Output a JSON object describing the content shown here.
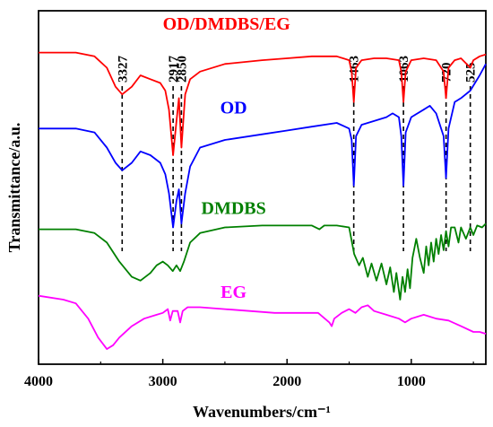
{
  "chart_data": {
    "type": "line",
    "xlabel": "Wavenumbers/cm⁻¹",
    "ylabel": "Transmittance/a.u.",
    "xlim": [
      4000,
      400
    ],
    "x_reversed": true,
    "x_ticks": [
      4000,
      3000,
      2000,
      1000
    ],
    "y_ticks": false,
    "grid": false,
    "legend": "none (series labeled inline above each curve)",
    "peak_markers": [
      3327,
      2917,
      2850,
      1463,
      1063,
      720,
      525
    ],
    "series": [
      {
        "name": "OD/DMDBS/EG",
        "color": "#ff0000",
        "points": [
          [
            4000,
            6.5
          ],
          [
            3700,
            6.5
          ],
          [
            3550,
            6.4
          ],
          [
            3450,
            6.1
          ],
          [
            3380,
            5.6
          ],
          [
            3327,
            5.4
          ],
          [
            3250,
            5.6
          ],
          [
            3180,
            5.9
          ],
          [
            3100,
            5.8
          ],
          [
            3020,
            5.7
          ],
          [
            2980,
            5.5
          ],
          [
            2950,
            5.0
          ],
          [
            2917,
            3.8
          ],
          [
            2890,
            4.7
          ],
          [
            2870,
            5.3
          ],
          [
            2850,
            4.0
          ],
          [
            2820,
            5.4
          ],
          [
            2780,
            5.8
          ],
          [
            2700,
            6.0
          ],
          [
            2500,
            6.2
          ],
          [
            2200,
            6.3
          ],
          [
            2000,
            6.35
          ],
          [
            1800,
            6.4
          ],
          [
            1600,
            6.4
          ],
          [
            1500,
            6.3
          ],
          [
            1480,
            6.0
          ],
          [
            1463,
            5.2
          ],
          [
            1445,
            6.1
          ],
          [
            1400,
            6.3
          ],
          [
            1300,
            6.35
          ],
          [
            1200,
            6.35
          ],
          [
            1100,
            6.3
          ],
          [
            1080,
            6.0
          ],
          [
            1063,
            5.2
          ],
          [
            1045,
            6.0
          ],
          [
            1000,
            6.3
          ],
          [
            900,
            6.35
          ],
          [
            800,
            6.3
          ],
          [
            740,
            6.0
          ],
          [
            720,
            5.3
          ],
          [
            700,
            6.1
          ],
          [
            650,
            6.3
          ],
          [
            600,
            6.35
          ],
          [
            525,
            6.1
          ],
          [
            500,
            6.3
          ],
          [
            450,
            6.4
          ],
          [
            400,
            6.45
          ]
        ]
      },
      {
        "name": "OD",
        "color": "#0000ff",
        "points": [
          [
            4000,
            4.5
          ],
          [
            3700,
            4.5
          ],
          [
            3550,
            4.4
          ],
          [
            3450,
            4.0
          ],
          [
            3380,
            3.6
          ],
          [
            3327,
            3.4
          ],
          [
            3250,
            3.6
          ],
          [
            3180,
            3.9
          ],
          [
            3100,
            3.8
          ],
          [
            3020,
            3.6
          ],
          [
            2980,
            3.3
          ],
          [
            2950,
            2.8
          ],
          [
            2917,
            1.9
          ],
          [
            2890,
            2.6
          ],
          [
            2870,
            2.9
          ],
          [
            2850,
            2.0
          ],
          [
            2820,
            2.8
          ],
          [
            2780,
            3.5
          ],
          [
            2700,
            4.0
          ],
          [
            2500,
            4.2
          ],
          [
            2200,
            4.35
          ],
          [
            2000,
            4.45
          ],
          [
            1800,
            4.55
          ],
          [
            1600,
            4.65
          ],
          [
            1500,
            4.5
          ],
          [
            1480,
            4.2
          ],
          [
            1463,
            3.0
          ],
          [
            1445,
            4.3
          ],
          [
            1400,
            4.6
          ],
          [
            1300,
            4.7
          ],
          [
            1200,
            4.8
          ],
          [
            1150,
            4.9
          ],
          [
            1100,
            4.8
          ],
          [
            1080,
            4.3
          ],
          [
            1063,
            3.0
          ],
          [
            1045,
            4.4
          ],
          [
            1000,
            4.8
          ],
          [
            900,
            5.0
          ],
          [
            850,
            5.1
          ],
          [
            800,
            4.9
          ],
          [
            740,
            4.3
          ],
          [
            720,
            3.2
          ],
          [
            700,
            4.5
          ],
          [
            650,
            5.2
          ],
          [
            600,
            5.3
          ],
          [
            525,
            5.5
          ],
          [
            450,
            5.9
          ],
          [
            400,
            6.2
          ]
        ]
      },
      {
        "name": "DMDBS",
        "color": "#008000",
        "points": [
          [
            4000,
            1.85
          ],
          [
            3700,
            1.85
          ],
          [
            3550,
            1.75
          ],
          [
            3450,
            1.5
          ],
          [
            3350,
            1.0
          ],
          [
            3250,
            0.6
          ],
          [
            3180,
            0.5
          ],
          [
            3100,
            0.7
          ],
          [
            3050,
            0.9
          ],
          [
            3000,
            1.0
          ],
          [
            2960,
            0.9
          ],
          [
            2920,
            0.75
          ],
          [
            2890,
            0.9
          ],
          [
            2860,
            0.75
          ],
          [
            2830,
            1.0
          ],
          [
            2780,
            1.5
          ],
          [
            2700,
            1.75
          ],
          [
            2500,
            1.9
          ],
          [
            2200,
            1.95
          ],
          [
            2000,
            1.95
          ],
          [
            1800,
            1.95
          ],
          [
            1740,
            1.85
          ],
          [
            1700,
            1.95
          ],
          [
            1600,
            1.95
          ],
          [
            1500,
            1.9
          ],
          [
            1460,
            1.2
          ],
          [
            1420,
            0.9
          ],
          [
            1390,
            1.1
          ],
          [
            1350,
            0.6
          ],
          [
            1320,
            0.95
          ],
          [
            1280,
            0.5
          ],
          [
            1240,
            0.95
          ],
          [
            1200,
            0.4
          ],
          [
            1170,
            0.85
          ],
          [
            1140,
            0.2
          ],
          [
            1120,
            0.7
          ],
          [
            1090,
            0.0
          ],
          [
            1070,
            0.6
          ],
          [
            1050,
            0.2
          ],
          [
            1030,
            0.8
          ],
          [
            1010,
            0.3
          ],
          [
            990,
            1.1
          ],
          [
            960,
            1.6
          ],
          [
            930,
            1.1
          ],
          [
            900,
            0.7
          ],
          [
            880,
            1.4
          ],
          [
            860,
            0.9
          ],
          [
            840,
            1.5
          ],
          [
            820,
            1.0
          ],
          [
            800,
            1.6
          ],
          [
            780,
            1.2
          ],
          [
            760,
            1.7
          ],
          [
            740,
            1.3
          ],
          [
            720,
            1.8
          ],
          [
            700,
            1.4
          ],
          [
            680,
            1.9
          ],
          [
            650,
            1.9
          ],
          [
            620,
            1.5
          ],
          [
            600,
            1.9
          ],
          [
            560,
            1.6
          ],
          [
            525,
            1.9
          ],
          [
            500,
            1.7
          ],
          [
            470,
            1.95
          ],
          [
            430,
            1.9
          ],
          [
            400,
            2.0
          ]
        ]
      },
      {
        "name": "EG",
        "color": "#ff00ff",
        "points": [
          [
            4000,
            0.1
          ],
          [
            3800,
            0.0
          ],
          [
            3700,
            -0.1
          ],
          [
            3600,
            -0.5
          ],
          [
            3520,
            -1.0
          ],
          [
            3450,
            -1.3
          ],
          [
            3400,
            -1.2
          ],
          [
            3350,
            -1.0
          ],
          [
            3250,
            -0.7
          ],
          [
            3150,
            -0.5
          ],
          [
            3050,
            -0.4
          ],
          [
            3000,
            -0.35
          ],
          [
            2960,
            -0.25
          ],
          [
            2940,
            -0.55
          ],
          [
            2920,
            -0.3
          ],
          [
            2880,
            -0.3
          ],
          [
            2860,
            -0.6
          ],
          [
            2840,
            -0.3
          ],
          [
            2800,
            -0.2
          ],
          [
            2700,
            -0.2
          ],
          [
            2500,
            -0.25
          ],
          [
            2300,
            -0.3
          ],
          [
            2100,
            -0.35
          ],
          [
            2000,
            -0.35
          ],
          [
            1900,
            -0.35
          ],
          [
            1750,
            -0.35
          ],
          [
            1660,
            -0.6
          ],
          [
            1640,
            -0.7
          ],
          [
            1620,
            -0.5
          ],
          [
            1560,
            -0.35
          ],
          [
            1500,
            -0.25
          ],
          [
            1450,
            -0.35
          ],
          [
            1400,
            -0.2
          ],
          [
            1350,
            -0.15
          ],
          [
            1300,
            -0.3
          ],
          [
            1200,
            -0.4
          ],
          [
            1100,
            -0.5
          ],
          [
            1050,
            -0.6
          ],
          [
            1000,
            -0.5
          ],
          [
            900,
            -0.4
          ],
          [
            850,
            -0.45
          ],
          [
            800,
            -0.5
          ],
          [
            700,
            -0.55
          ],
          [
            600,
            -0.7
          ],
          [
            500,
            -0.85
          ],
          [
            450,
            -0.85
          ],
          [
            400,
            -0.9
          ]
        ]
      }
    ],
    "ylim": [
      -1.7,
      7.6
    ]
  }
}
